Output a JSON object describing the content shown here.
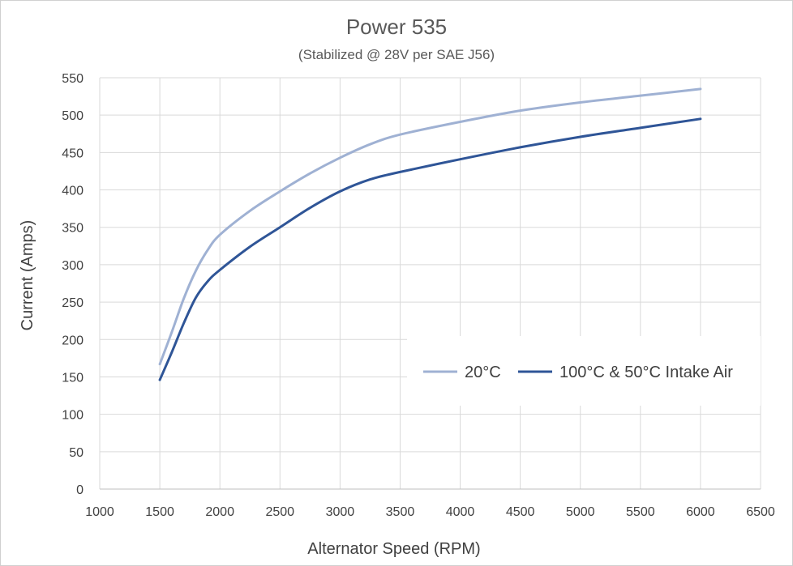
{
  "chart_data": {
    "type": "line",
    "title": "Power 535",
    "subtitle": "(Stabilized @ 28V per SAE J56)",
    "xlabel": "Alternator Speed (RPM)",
    "ylabel": "Current (Amps)",
    "xlim": [
      1000,
      6500
    ],
    "ylim": [
      0,
      550
    ],
    "xticks": [
      1000,
      1500,
      2000,
      2500,
      3000,
      3500,
      4000,
      4500,
      5000,
      5500,
      6000,
      6500
    ],
    "yticks": [
      0,
      50,
      100,
      150,
      200,
      250,
      300,
      350,
      400,
      450,
      500,
      550
    ],
    "grid": true,
    "legend_position": "bottom-right",
    "series": [
      {
        "name": "20°C",
        "color": "#9fb1d3",
        "x": [
          1500,
          1600,
          1700,
          1800,
          1900,
          2000,
          2250,
          2500,
          2750,
          3000,
          3250,
          3500,
          4000,
          4500,
          5000,
          5500,
          6000
        ],
        "y": [
          167,
          210,
          255,
          292,
          320,
          340,
          372,
          398,
          422,
          443,
          461,
          474,
          491,
          506,
          517,
          526,
          535
        ]
      },
      {
        "name": "100°C & 50°C Intake Air",
        "color": "#2f5597",
        "x": [
          1500,
          1600,
          1700,
          1800,
          1900,
          2000,
          2250,
          2500,
          2750,
          3000,
          3250,
          3500,
          4000,
          4500,
          5000,
          5500,
          6000
        ],
        "y": [
          146,
          183,
          222,
          256,
          278,
          293,
          324,
          350,
          376,
          398,
          414,
          424,
          441,
          457,
          471,
          483,
          495
        ]
      }
    ]
  }
}
